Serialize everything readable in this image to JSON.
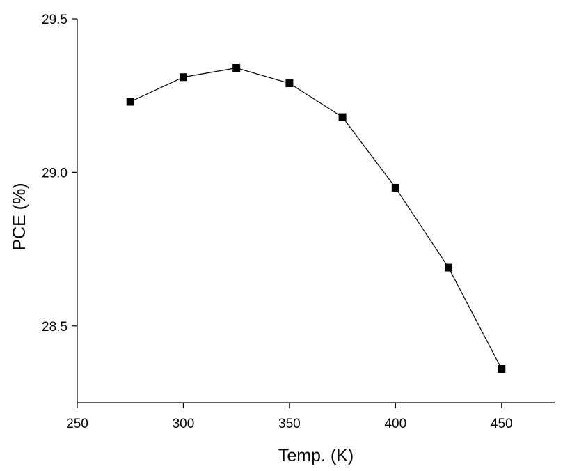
{
  "chart_data": {
    "type": "line",
    "title": "",
    "xlabel": "Temp. (K)",
    "ylabel": "PCE (%)",
    "xlim": [
      250,
      475
    ],
    "ylim": [
      28.25,
      29.5
    ],
    "x_ticks": [
      250,
      300,
      350,
      400,
      450
    ],
    "x_tick_labels": [
      "250",
      "300",
      "350",
      "400",
      "450"
    ],
    "y_ticks": [
      28.5,
      29.0,
      29.5
    ],
    "y_tick_labels": [
      "28.5",
      "29.0",
      "29.5"
    ],
    "grid": false,
    "legend": "none",
    "series": [
      {
        "x": [
          275,
          300,
          325,
          350,
          375,
          400,
          425,
          450
        ],
        "y": [
          29.23,
          29.31,
          29.34,
          29.29,
          29.18,
          28.95,
          28.69,
          28.36
        ],
        "marker": "square",
        "color": "#000000"
      }
    ]
  }
}
